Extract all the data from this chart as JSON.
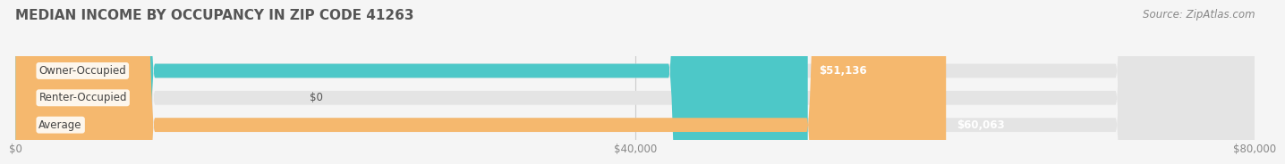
{
  "title": "MEDIAN INCOME BY OCCUPANCY IN ZIP CODE 41263",
  "source": "Source: ZipAtlas.com",
  "categories": [
    "Owner-Occupied",
    "Renter-Occupied",
    "Average"
  ],
  "values": [
    51136,
    0,
    60063
  ],
  "bar_colors": [
    "#4DC8C8",
    "#C9A8D4",
    "#F5B86E"
  ],
  "bar_labels": [
    "$51,136",
    "$0",
    "$60,063"
  ],
  "xlim": [
    0,
    80000
  ],
  "xticks": [
    0,
    40000,
    80000
  ],
  "xtick_labels": [
    "$0",
    "$40,000",
    "$80,000"
  ],
  "background_color": "#f5f5f5",
  "bar_bg_color": "#e4e4e4",
  "title_fontsize": 11,
  "label_fontsize": 8.5,
  "source_fontsize": 8.5,
  "title_color": "#555555",
  "source_color": "#888888",
  "tick_color": "#888888"
}
